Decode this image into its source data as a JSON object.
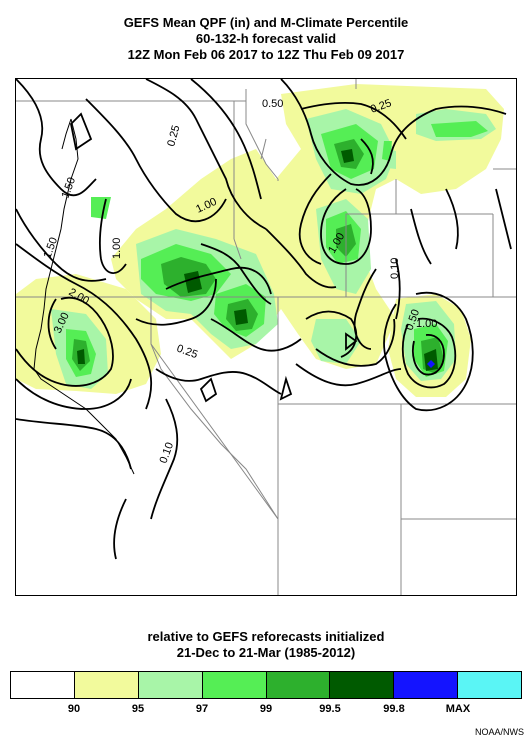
{
  "header": {
    "title_line1": "GEFS Mean QPF (in) and M-Climate Percentile",
    "title_line2": "60-132-h forecast valid",
    "title_line3": "12Z Mon Feb 06 2017 to 12Z Thu Feb 09 2017"
  },
  "map": {
    "contour_labels": [
      "0.50",
      "0.25",
      "0.25",
      "1.50",
      "1.00",
      "1.00",
      "1.50",
      "1.00",
      "2.00",
      "3.00",
      "0.25",
      "0.10",
      "0.10",
      "0.50",
      "1.00"
    ]
  },
  "footer": {
    "subtitle_line1": "relative to GEFS reforecasts initialized",
    "subtitle_line2": "21-Dec to 21-Mar (1985-2012)",
    "credit": "NOAA/NWS"
  },
  "legend": {
    "swatches": [
      {
        "color": "#ffffff"
      },
      {
        "color": "#f2fa9c"
      },
      {
        "color": "#a8f5a8"
      },
      {
        "color": "#55ee55"
      },
      {
        "color": "#2db02d"
      },
      {
        "color": "#005a00"
      },
      {
        "color": "#1414ff"
      },
      {
        "color": "#5af5f5"
      }
    ],
    "ticks": [
      "90",
      "95",
      "97",
      "99",
      "99.5",
      "99.8",
      "MAX"
    ]
  }
}
